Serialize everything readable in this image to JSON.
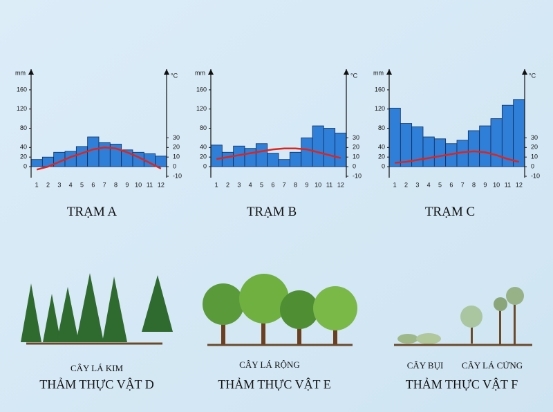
{
  "chart_data": [
    {
      "type": "bar",
      "title": "TRẠM A",
      "ylabel": "mm",
      "y2label": "°C",
      "categories": [
        "1",
        "2",
        "3",
        "4",
        "5",
        "6",
        "7",
        "8",
        "9",
        "10",
        "11",
        "12"
      ],
      "series": [
        {
          "color": "#2f7fd8",
          "values": [
            15,
            20,
            30,
            32,
            42,
            62,
            50,
            47,
            35,
            30,
            27,
            22
          ]
        },
        {
          "color": "#e0241c",
          "axis": "y2",
          "values": [
            -3,
            0,
            5,
            10,
            14,
            18,
            20,
            19,
            15,
            10,
            4,
            -2
          ]
        }
      ],
      "ylim": [
        -20,
        170
      ],
      "yticks": [
        0,
        20,
        40,
        80,
        120,
        160
      ],
      "y2lim": [
        -10,
        85
      ],
      "y2ticks": [
        -10,
        0,
        10,
        20,
        30
      ]
    },
    {
      "type": "bar",
      "title": "TRẠM B",
      "ylabel": "mm",
      "y2label": "°C",
      "categories": [
        "1",
        "2",
        "3",
        "4",
        "5",
        "6",
        "7",
        "8",
        "9",
        "10",
        "11",
        "12"
      ],
      "series": [
        {
          "color": "#2f7fd8",
          "values": [
            45,
            30,
            43,
            38,
            48,
            28,
            15,
            30,
            60,
            85,
            80,
            70
          ]
        },
        {
          "color": "#e0241c",
          "axis": "y2",
          "values": [
            8,
            10,
            12,
            14,
            16,
            18,
            19,
            19,
            18,
            15,
            12,
            9
          ]
        }
      ],
      "ylim": [
        -20,
        170
      ],
      "yticks": [
        0,
        20,
        40,
        80,
        120,
        160
      ],
      "y2lim": [
        -10,
        85
      ],
      "y2ticks": [
        -10,
        0,
        10,
        20,
        30
      ]
    },
    {
      "type": "bar",
      "title": "TRẠM C",
      "ylabel": "mm",
      "y2label": "°C",
      "categories": [
        "1",
        "2",
        "3",
        "4",
        "5",
        "6",
        "7",
        "8",
        "9",
        "10",
        "11",
        "12"
      ],
      "series": [
        {
          "color": "#2f7fd8",
          "values": [
            122,
            90,
            83,
            62,
            58,
            48,
            55,
            75,
            85,
            100,
            128,
            140
          ]
        },
        {
          "color": "#e0241c",
          "axis": "y2",
          "values": [
            4,
            5,
            7,
            9,
            11,
            13,
            15,
            16,
            15,
            12,
            8,
            5
          ]
        }
      ],
      "ylim": [
        -20,
        170
      ],
      "yticks": [
        0,
        20,
        40,
        80,
        120,
        160
      ],
      "y2lim": [
        -10,
        85
      ],
      "y2ticks": [
        -10,
        0,
        10,
        20,
        30
      ]
    }
  ],
  "vegetation": [
    {
      "labels": [
        "CÂY LÁ KIM"
      ],
      "title": "THẢM THỰC VẬT D"
    },
    {
      "labels": [
        "CÂY LÁ RỘNG"
      ],
      "title": "THẢM THỰC VẬT E"
    },
    {
      "labels": [
        "CÂY BỤI",
        "CÂY LÁ CỨNG"
      ],
      "title": "THẢM THỰC VẬT F"
    }
  ]
}
